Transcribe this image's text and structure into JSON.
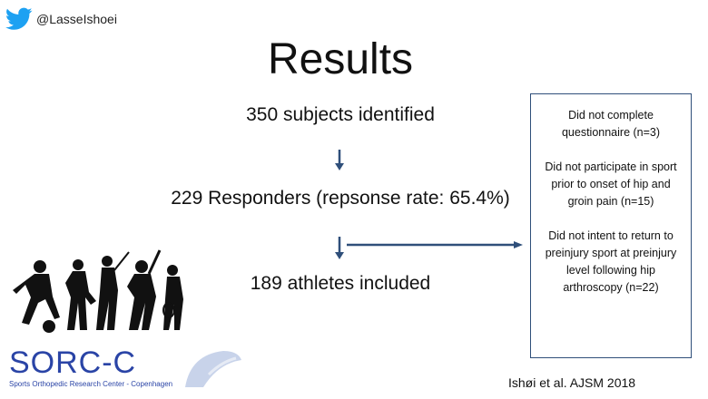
{
  "header": {
    "handle": "@LasseIshoei"
  },
  "slide": {
    "title": "Results",
    "steps": [
      "350 subjects identified",
      "229 Responders (repsonse rate: 65.4%)",
      "189 athletes included"
    ],
    "exclusions": [
      "Did not complete questionnaire (n=3)",
      "Did not participate in sport prior to onset of hip and groin pain (n=15)",
      "Did not intent to return to preinjury sport at preinjury level following hip arthroscopy (n=22)"
    ],
    "citation": "Ishøi et al. AJSM 2018"
  },
  "logo": {
    "name": "SORC-C",
    "subtitle": "Sports Orthopedic Research Center - Copenhagen"
  },
  "colors": {
    "arrow": "#2f4f7a",
    "box_border": "#2f4f7a",
    "logo": "#2a44a6",
    "twitter": "#1da1f2"
  }
}
